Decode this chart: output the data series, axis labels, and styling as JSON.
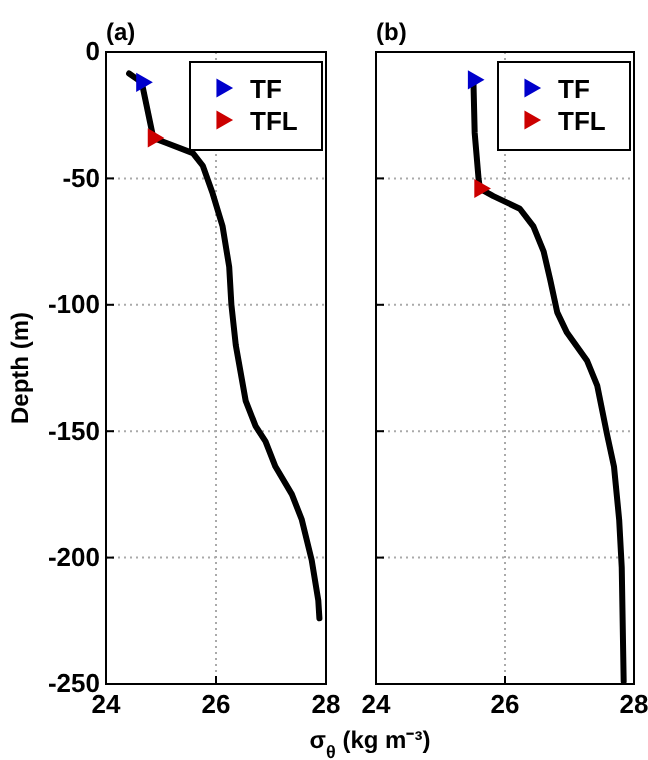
{
  "chart_data": [
    {
      "type": "line",
      "title": "(a)",
      "xlabel": "σ$_{θ}$ (kg m⁻³)",
      "ylabel": "Depth (m)",
      "xlim": [
        24,
        28
      ],
      "xticks": [
        24,
        26,
        28
      ],
      "ylim": [
        -250,
        0
      ],
      "yticks": [
        -250,
        -200,
        -150,
        -100,
        -50,
        0
      ],
      "grid": true,
      "legend": "top right",
      "series": [
        {
          "color": "#000000",
          "x": [
            24.42,
            24.65,
            24.86,
            25.1,
            25.58,
            25.76,
            25.94,
            26.12,
            26.24,
            26.28,
            26.36,
            26.54,
            26.72,
            26.9,
            27.08,
            27.38,
            27.56,
            27.74,
            27.86,
            27.88
          ],
          "values": [
            -8.5,
            -12,
            -34,
            -36,
            -40,
            -45,
            -56,
            -69,
            -85,
            -100,
            -116,
            -138,
            -148,
            -154,
            -164,
            -175,
            -185,
            -201,
            -217,
            -224
          ]
        },
        {
          "type": "scatter",
          "name": "TF",
          "color": "#0000cc",
          "marker": "triangle",
          "x": [
            24.65
          ],
          "values": [
            -12
          ]
        },
        {
          "type": "scatter",
          "name": "TFL",
          "color": "#cc0000",
          "marker": "triangle",
          "x": [
            24.86
          ],
          "values": [
            -34
          ]
        }
      ]
    },
    {
      "type": "line",
      "title": "(b)",
      "xlim": [
        24,
        28
      ],
      "xticks": [
        24,
        26,
        28
      ],
      "ylim": [
        -250,
        0
      ],
      "yticks": [
        -250,
        -200,
        -150,
        -100,
        -50,
        0
      ],
      "tick_labels": "x",
      "grid": true,
      "legend": "top right",
      "series": [
        {
          "color": "#000000",
          "x": [
            25.51,
            25.53,
            25.59,
            25.61,
            25.82,
            26.23,
            26.44,
            26.6,
            26.7,
            26.81,
            26.96,
            27.27,
            27.43,
            27.58,
            27.69,
            27.77,
            27.81,
            27.84
          ],
          "values": [
            -11,
            -32,
            -50,
            -54,
            -57,
            -62,
            -69,
            -79,
            -90,
            -103,
            -111,
            -122,
            -132,
            -151,
            -164,
            -185,
            -204,
            -249
          ]
        },
        {
          "type": "scatter",
          "name": "TF",
          "color": "#0000cc",
          "marker": "triangle",
          "x": [
            25.51
          ],
          "values": [
            -11
          ]
        },
        {
          "type": "scatter",
          "name": "TFL",
          "color": "#cc0000",
          "marker": "triangle",
          "x": [
            25.61
          ],
          "values": [
            -54
          ]
        }
      ]
    }
  ]
}
